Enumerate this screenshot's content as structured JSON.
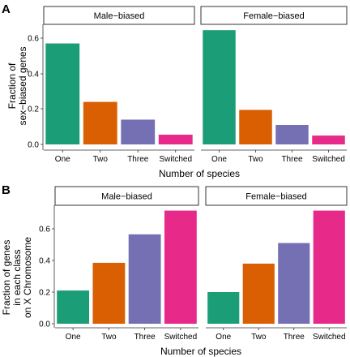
{
  "colors": {
    "One": "#1b9e77",
    "Two": "#d95f02",
    "Three": "#7570b3",
    "Switched": "#e7298a"
  },
  "panels": [
    {
      "letter": "A",
      "ylabel_lines": [
        "Fraction of",
        "sex−biased genes"
      ],
      "xlabel": "Number of species",
      "yticks": [
        "0.0",
        "0.2",
        "0.4",
        "0.6"
      ],
      "facets": [
        "Male−biased",
        "Female−biased"
      ]
    },
    {
      "letter": "B",
      "ylabel_lines": [
        "Fraction of genes",
        "in each class",
        "on X Chromosome"
      ],
      "xlabel": "Number of species",
      "yticks": [
        "0.0",
        "0.2",
        "0.4",
        "0.6"
      ],
      "facets": [
        "Male−biased",
        "Female−biased"
      ]
    }
  ],
  "chart_data": [
    {
      "type": "bar",
      "panel": "A",
      "ylabel": "Fraction of sex−biased genes",
      "xlabel": "Number of species",
      "categories": [
        "One",
        "Two",
        "Three",
        "Switched"
      ],
      "ylim": [
        0,
        0.66
      ],
      "series": [
        {
          "name": "Male−biased",
          "values": [
            0.57,
            0.24,
            0.14,
            0.055
          ]
        },
        {
          "name": "Female−biased",
          "values": [
            0.645,
            0.195,
            0.11,
            0.05
          ]
        }
      ]
    },
    {
      "type": "bar",
      "panel": "B",
      "ylabel": "Fraction of genes in each class on X Chromosome",
      "xlabel": "Number of species",
      "categories": [
        "One",
        "Two",
        "Three",
        "Switched"
      ],
      "ylim": [
        0,
        0.74
      ],
      "series": [
        {
          "name": "Male−biased",
          "values": [
            0.21,
            0.385,
            0.565,
            0.715
          ]
        },
        {
          "name": "Female−biased",
          "values": [
            0.2,
            0.38,
            0.51,
            0.715
          ]
        }
      ]
    }
  ]
}
